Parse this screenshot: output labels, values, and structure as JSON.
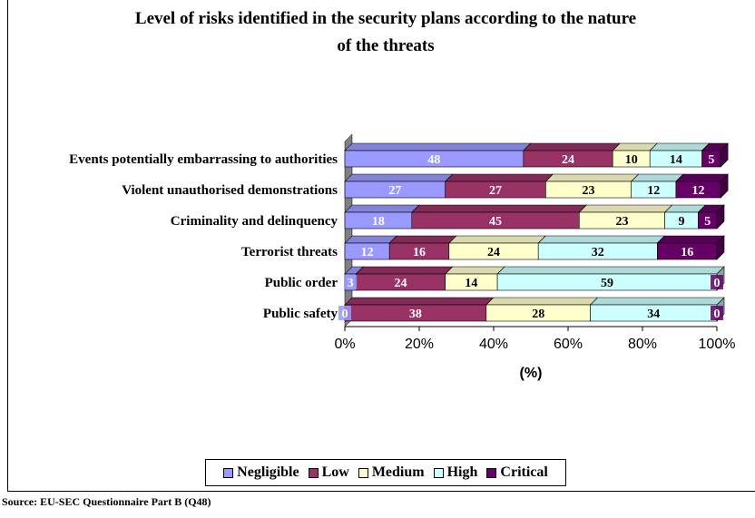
{
  "chart_data": {
    "type": "bar",
    "orientation": "horizontal",
    "stacked": "percent",
    "title": "Level of risks identified in the security plans according to the nature of the threats",
    "title_lines": [
      "Level of risks identified in the security plans according to the nature",
      "of the threats"
    ],
    "xlabel": "(%)",
    "ylabel": "",
    "xlim": [
      0,
      100
    ],
    "xticks": [
      "0%",
      "20%",
      "40%",
      "60%",
      "80%",
      "100%"
    ],
    "categories": [
      "Events potentially embarrassing to authorities",
      "Violent unauthorised demonstrations",
      "Criminality and delinquency",
      "Terrorist threats",
      "Public order",
      "Public safety"
    ],
    "series": [
      {
        "name": "Negligible",
        "color": "#9999ff",
        "values": [
          48,
          27,
          18,
          12,
          3,
          0
        ]
      },
      {
        "name": "Low",
        "color": "#993366",
        "values": [
          24,
          27,
          45,
          16,
          24,
          38
        ]
      },
      {
        "name": "Medium",
        "color": "#ffffcc",
        "values": [
          10,
          23,
          23,
          24,
          14,
          28
        ]
      },
      {
        "name": "High",
        "color": "#ccffff",
        "values": [
          14,
          12,
          9,
          32,
          59,
          34
        ]
      },
      {
        "name": "Critical",
        "color": "#660066",
        "values": [
          5,
          12,
          5,
          16,
          0,
          0
        ]
      }
    ],
    "legend_position": "bottom",
    "grid": false
  },
  "source": "Source: EU-SEC Questionnaire Part B (Q48)"
}
